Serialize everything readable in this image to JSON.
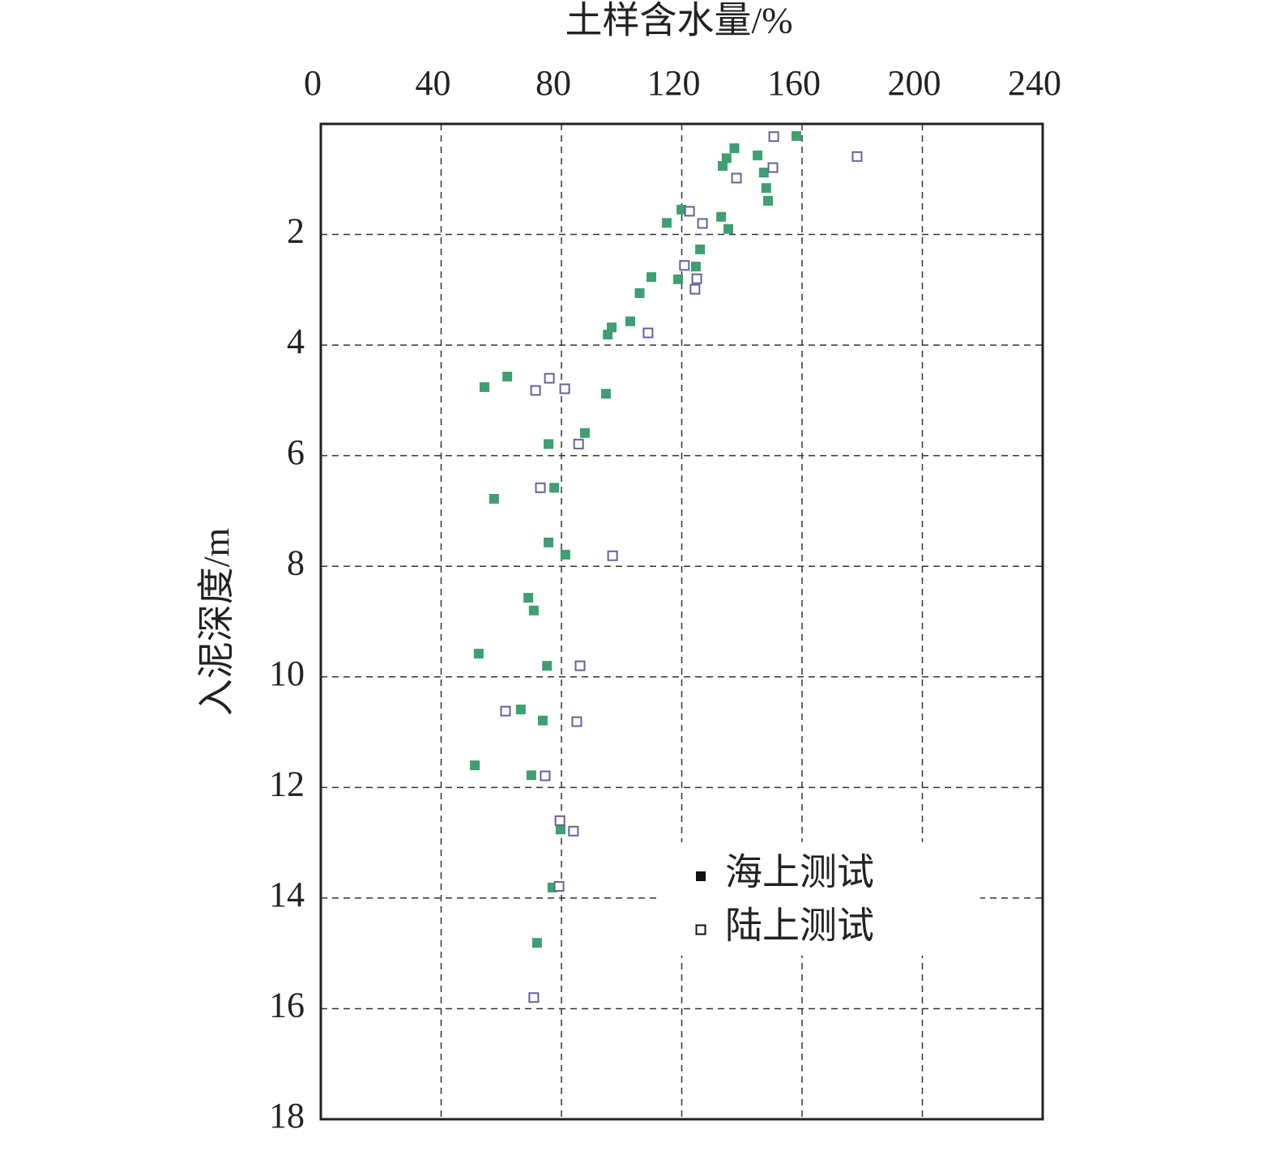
{
  "chart_data": {
    "type": "scatter",
    "x_label": "土样含水量/%",
    "y_label": "入泥深度/m",
    "xlim": [
      0,
      240
    ],
    "xticks": [
      0,
      40,
      80,
      120,
      160,
      200,
      240
    ],
    "ylim": [
      0,
      18
    ],
    "yticks": [
      2,
      4,
      6,
      8,
      10,
      12,
      14,
      16,
      18
    ],
    "y_inverted": true,
    "x_axis_top": true,
    "grid": true,
    "series": [
      {
        "name": "海上测试",
        "color": "#3f9f72",
        "filled": true,
        "x": [
          158.1,
          137.5,
          145.2,
          134.9,
          133.6,
          147.3,
          148.1,
          148.7,
          119.9,
          133.1,
          115.0,
          135.5,
          126.1,
          124.7,
          109.9,
          118.8,
          106.0,
          102.9,
          96.7,
          95.4,
          62.0,
          54.4,
          94.8,
          87.8,
          75.7,
          77.6,
          57.6,
          75.7,
          81.3,
          69.0,
          70.8,
          52.5,
          75.2,
          66.5,
          73.8,
          51.2,
          70.0,
          79.7,
          77.0,
          71.9
        ],
        "values": [
          0.22,
          0.44,
          0.57,
          0.62,
          0.76,
          0.88,
          1.16,
          1.39,
          1.55,
          1.68,
          1.79,
          1.9,
          2.27,
          2.58,
          2.77,
          2.81,
          3.06,
          3.57,
          3.68,
          3.81,
          4.57,
          4.76,
          4.88,
          5.59,
          5.79,
          6.58,
          6.78,
          7.57,
          7.79,
          8.57,
          8.8,
          9.58,
          9.8,
          10.59,
          10.79,
          11.6,
          11.78,
          12.76,
          13.81,
          14.81
        ]
      },
      {
        "name": "陆上测试",
        "color": "#62629e",
        "filled": false,
        "x": [
          150.6,
          178.3,
          150.3,
          138.2,
          122.6,
          126.9,
          120.9,
          125.0,
          124.4,
          108.8,
          76.0,
          71.4,
          81.1,
          85.7,
          73.0,
          97.0,
          86.2,
          61.4,
          85.1,
          74.6,
          79.5,
          84.0,
          79.2,
          70.8
        ],
        "values": [
          0.23,
          0.59,
          0.79,
          0.98,
          1.58,
          1.8,
          2.56,
          2.8,
          2.99,
          3.78,
          4.6,
          4.82,
          4.79,
          5.79,
          6.58,
          7.81,
          9.8,
          10.62,
          10.81,
          11.79,
          12.6,
          12.79,
          13.79,
          15.8
        ]
      }
    ]
  }
}
